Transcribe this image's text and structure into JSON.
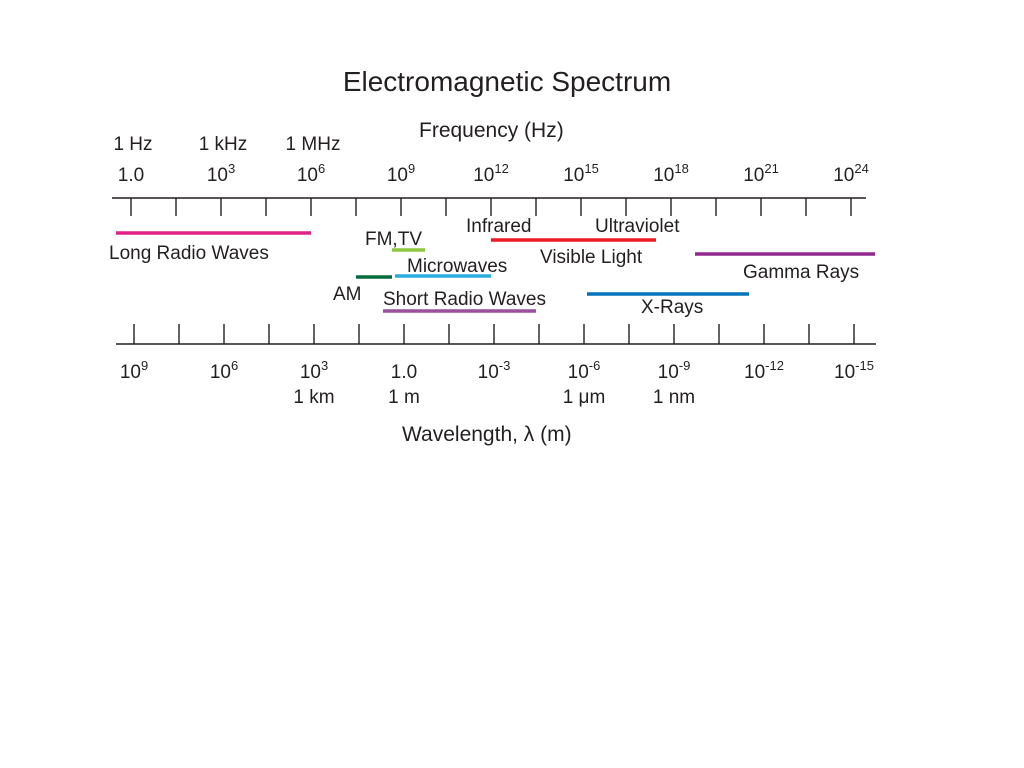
{
  "title": "Electromagnetic Spectrum",
  "frequency_axis": {
    "title": "Frequency (Hz)",
    "unit_labels": [
      {
        "text": "1 Hz",
        "exp": 0
      },
      {
        "text": "1 kHz",
        "exp": 3
      },
      {
        "text": "1 MHz",
        "exp": 6
      }
    ],
    "ticks": [
      {
        "base": "1.0",
        "exp": ""
      },
      {
        "base": "10",
        "exp": "3"
      },
      {
        "base": "10",
        "exp": "6"
      },
      {
        "base": "10",
        "exp": "9"
      },
      {
        "base": "10",
        "exp": "12"
      },
      {
        "base": "10",
        "exp": "15"
      },
      {
        "base": "10",
        "exp": "18"
      },
      {
        "base": "10",
        "exp": "21"
      },
      {
        "base": "10",
        "exp": "24"
      }
    ]
  },
  "wavelength_axis": {
    "title": "Wavelength, λ (m)",
    "ticks": [
      {
        "base": "10",
        "exp": "9"
      },
      {
        "base": "10",
        "exp": "6"
      },
      {
        "base": "10",
        "exp": "3"
      },
      {
        "base": "1.0",
        "exp": ""
      },
      {
        "base": "10",
        "exp": "-3"
      },
      {
        "base": "10",
        "exp": "-6"
      },
      {
        "base": "10",
        "exp": "-9"
      },
      {
        "base": "10",
        "exp": "-12"
      },
      {
        "base": "10",
        "exp": "-15"
      }
    ],
    "unit_labels": [
      {
        "text": "1 km",
        "exp": 3
      },
      {
        "text": "1 m",
        "exp": 0
      },
      {
        "text": "1 μm",
        "exp": -6
      },
      {
        "text": "1 nm",
        "exp": -9
      }
    ]
  },
  "bands": [
    {
      "name": "Long Radio Waves",
      "color": "#e0218a",
      "freq_log10": [
        -0.5,
        6
      ]
    },
    {
      "name": "AM",
      "color": "#006b3c",
      "freq_log10": [
        7.5,
        8.7
      ]
    },
    {
      "name": "FM,TV",
      "color": "#8dc63f",
      "freq_log10": [
        8.7,
        9.8
      ]
    },
    {
      "name": "Microwaves",
      "color": "#29abe2",
      "freq_log10": [
        8.8,
        12
      ]
    },
    {
      "name": "Short Radio Waves",
      "color": "#9b4f9e",
      "freq_log10": [
        8.4,
        13.5
      ]
    },
    {
      "name": "Infrared",
      "color": "#ed1c24",
      "freq_log10": [
        12,
        14.5
      ]
    },
    {
      "name": "Visible Light",
      "color": "",
      "freq_log10": [
        14.5,
        14.5
      ]
    },
    {
      "name": "Ultraviolet",
      "color": "#ed1c24",
      "freq_log10": [
        14.5,
        17.5
      ]
    },
    {
      "name": "X-Rays",
      "color": "#0072bc",
      "freq_log10": [
        15.2,
        20.6
      ]
    },
    {
      "name": "Gamma Rays",
      "color": "#92278f",
      "freq_log10": [
        18.8,
        24.8
      ]
    }
  ],
  "colors": {
    "axis": "#231f20",
    "text": "#231f20"
  }
}
